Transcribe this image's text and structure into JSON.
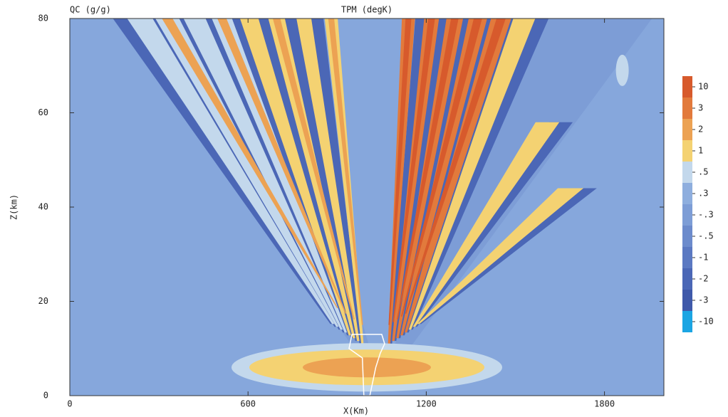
{
  "chart_data": {
    "type": "contour",
    "title": "TPM (degK)",
    "subtitle": "QC (g/g)",
    "x_label": "X(Km)",
    "y_label": "Z(km)",
    "xlim": [
      0,
      2000
    ],
    "xticks": [
      0,
      600,
      1200,
      1800
    ],
    "ylim": [
      0,
      80
    ],
    "yticks": [
      0,
      20,
      40,
      60,
      80
    ],
    "levels": [
      10,
      3,
      2,
      1,
      {
        "value": 0.5,
        "label": ".5"
      },
      {
        "value": 0.3,
        "label": ".3"
      },
      {
        "value": -0.3,
        "label": "-.3"
      },
      {
        "value": -0.5,
        "label": "-.5"
      },
      -1,
      -2,
      -3,
      -10
    ],
    "level_colors": [
      "#d75a2c",
      "#e27a3c",
      "#eca253",
      "#f4d272",
      "#c3d8ec",
      "#8eaede",
      "#7d9dd6",
      "#6c8bcc",
      "#5b79c2",
      "#4b67b6",
      "#3f59aa",
      "#1ba5e3"
    ]
  }
}
